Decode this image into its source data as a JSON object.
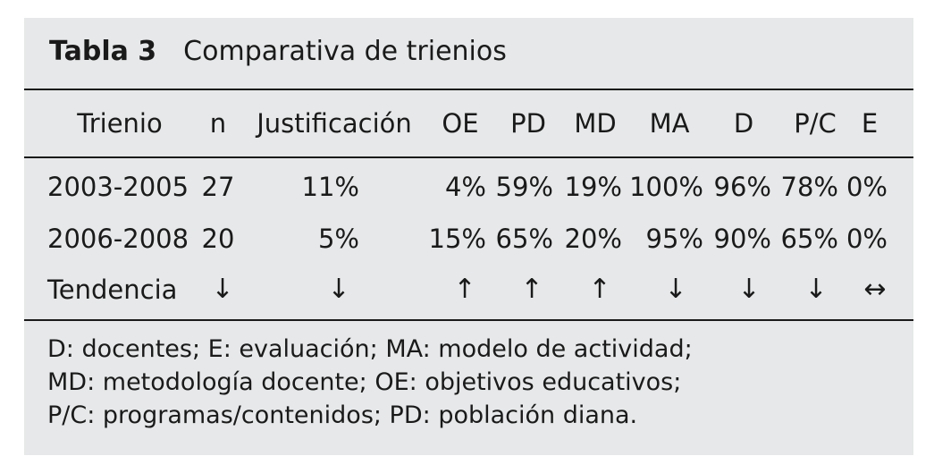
{
  "table": {
    "label": "Tabla 3",
    "title": "Comparativa de trienios",
    "headers": [
      "Trienio",
      "n",
      "Justificación",
      "OE",
      "PD",
      "MD",
      "MA",
      "D",
      "P/C",
      "E"
    ],
    "rows": [
      [
        "2003-2005",
        "27",
        "11%",
        "4%",
        "59%",
        "19%",
        "100%",
        "96%",
        "78%",
        "0%"
      ],
      [
        "2006-2008",
        "20",
        "5%",
        "15%",
        "65%",
        "20%",
        "95%",
        "90%",
        "65%",
        "0%"
      ],
      [
        "Tendencia",
        "↓",
        "↓",
        "↑",
        "↑",
        "↑",
        "↓",
        "↓",
        "↓",
        "↔"
      ]
    ],
    "footnotes": [
      "D: docentes; E: evaluación; MA: modelo de actividad;",
      "MD: metodología docente; OE: objetivos educativos;",
      "P/C: programas/contenidos; PD: población diana."
    ]
  }
}
